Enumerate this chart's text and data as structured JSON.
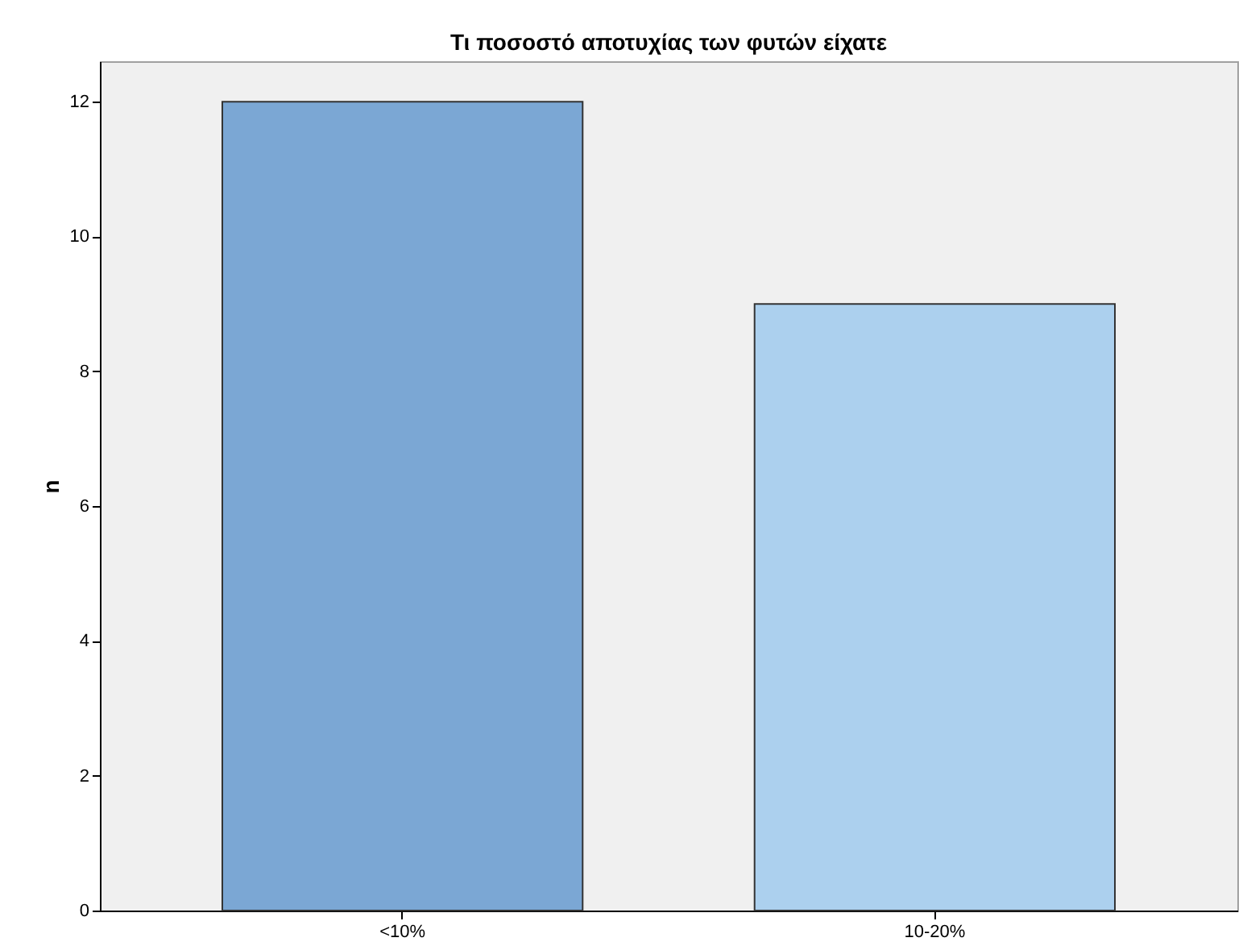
{
  "chart_data": {
    "type": "bar",
    "title": "Τι ποσοστό αποτυχίας των φυτών είχατε",
    "ylabel": "n",
    "categories": [
      "<10%",
      "10-20%"
    ],
    "values": [
      12,
      9
    ],
    "colors": [
      "#7ba7d4",
      "#acd0ee"
    ],
    "ylim": [
      0,
      12.6
    ],
    "yticks": [
      0,
      2,
      4,
      6,
      8,
      10,
      12
    ],
    "grid": false,
    "legend": false
  }
}
